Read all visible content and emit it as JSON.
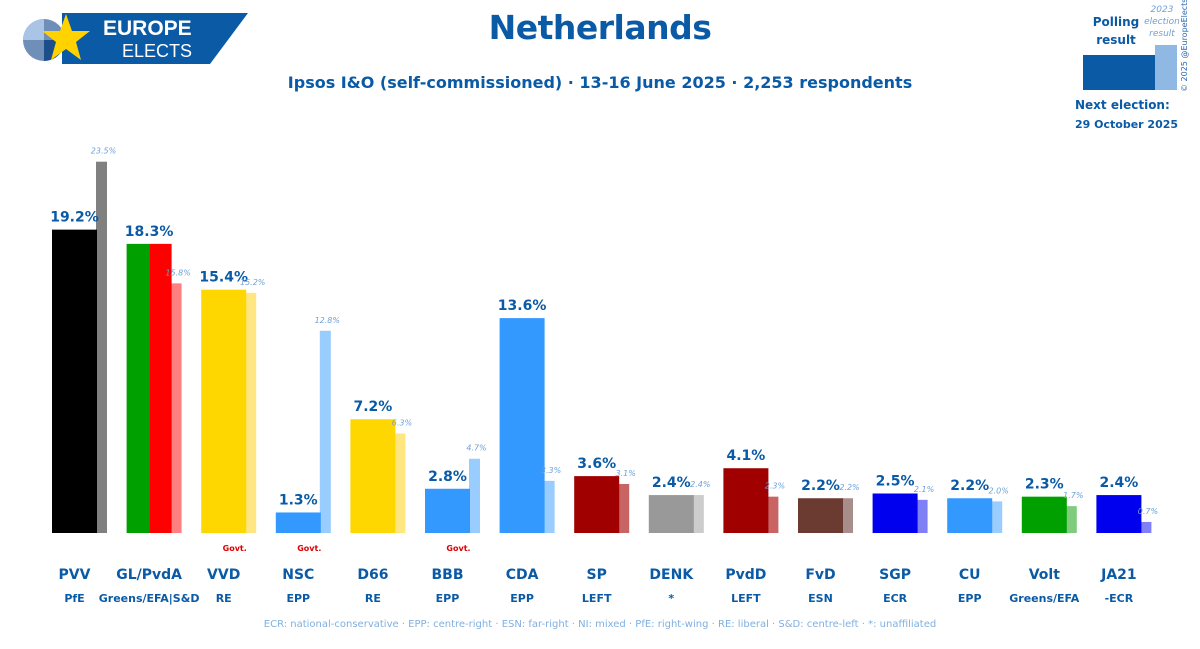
{
  "header": {
    "logo_line1": "EUROPE",
    "logo_line2": "ELECTS",
    "title": "Netherlands",
    "subtitle": "Ipsos I&O (self-commissioned) · 13-16 June 2025 · 2,253 respondents"
  },
  "legend": {
    "polling_label": "Polling result",
    "previous_label": "2023 election result",
    "next_election_label": "Next election:",
    "next_election_date": "29 October 2025",
    "copyright": "© 2025 @EuropeElects"
  },
  "footnote": "ECR: national-conservative · EPP: centre-right · ESN: far-right · NI: mixed · PfE: right-wing · RE: liberal · S&D: centre-left · *: unaffiliated",
  "chart_data": {
    "type": "bar",
    "unit": "%",
    "categories": [
      "PVV",
      "GL/PvdA",
      "VVD",
      "NSC",
      "D66",
      "BBB",
      "CDA",
      "SP",
      "DENK",
      "PvdD",
      "FvD",
      "SGP",
      "CU",
      "Volt",
      "JA21"
    ],
    "groups": [
      "PfE",
      "Greens/EFA|S&D",
      "RE",
      "EPP",
      "RE",
      "EPP",
      "EPP",
      "LEFT",
      "*",
      "LEFT",
      "ESN",
      "ECR",
      "EPP",
      "Greens/EFA",
      "-ECR"
    ],
    "series": [
      {
        "name": "Polling result",
        "values": [
          19.2,
          18.3,
          15.4,
          1.3,
          7.2,
          2.8,
          13.6,
          3.6,
          2.4,
          4.1,
          2.2,
          2.5,
          2.2,
          2.3,
          2.4
        ],
        "labels": [
          "19.2%",
          "18.3%",
          "15.4%",
          "1.3%",
          "7.2%",
          "2.8%",
          "13.6%",
          "3.6%",
          "2.4%",
          "4.1%",
          "2.2%",
          "2.5%",
          "2.2%",
          "2.3%",
          "2.4%"
        ]
      },
      {
        "name": "2023 election result",
        "values": [
          23.5,
          15.8,
          15.2,
          12.8,
          6.3,
          4.7,
          3.3,
          3.1,
          2.4,
          2.3,
          2.2,
          2.1,
          2.0,
          1.7,
          0.7
        ],
        "labels": [
          "23.5%",
          "15.8%",
          "15.2%",
          "12.8%",
          "6.3%",
          "4.7%",
          "3.3%",
          "3.1%",
          "2.4%",
          "2.3%",
          "2.2%",
          "2.1%",
          "2.0%",
          "1.7%",
          "0.7%"
        ]
      }
    ],
    "government": [
      false,
      false,
      true,
      true,
      false,
      true,
      false,
      false,
      false,
      false,
      false,
      false,
      false,
      false,
      false
    ],
    "government_label": "Govt.",
    "colors": {
      "bars": [
        "#000000",
        "#00a000",
        "#ffd700",
        "#3399ff",
        "#ffd700",
        "#3399ff",
        "#3399ff",
        "#a00000",
        "#999999",
        "#a00000",
        "#6b3a30",
        "#0000ee",
        "#3399ff",
        "#00a000",
        "#0000ee"
      ],
      "bars_second": [
        null,
        "#ff0000",
        null,
        null,
        null,
        null,
        null,
        null,
        null,
        null,
        null,
        null,
        null,
        null,
        null
      ],
      "previous": [
        "#808080",
        "#ff8080",
        "#ffe680",
        "#99ccff",
        "#ffe680",
        "#99ccff",
        "#99ccff",
        "#c86464",
        "#cccccc",
        "#c86464",
        "#a88e8a",
        "#7f7ff6",
        "#99ccff",
        "#7fcc7f",
        "#7f7ff6"
      ]
    },
    "ylim": [
      0,
      23.5
    ]
  }
}
